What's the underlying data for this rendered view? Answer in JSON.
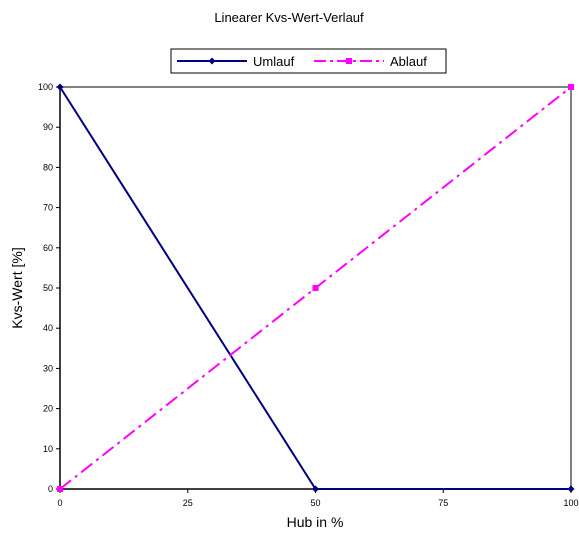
{
  "chart_data": {
    "type": "line",
    "title": "Linearer Kvs-Wert-Verlauf",
    "xlabel": "Hub in %",
    "ylabel": "Kvs-Wert [%]",
    "x": [
      0,
      50,
      100
    ],
    "xlim": [
      0,
      100
    ],
    "ylim": [
      0,
      100
    ],
    "xticks": [
      "0",
      "25",
      "50",
      "75",
      "100"
    ],
    "yticks": [
      "0",
      "10",
      "20",
      "30",
      "40",
      "50",
      "60",
      "70",
      "80",
      "90",
      "100"
    ],
    "grid": false,
    "legend_position": "top-center",
    "series": [
      {
        "name": "Umlauf",
        "values": [
          100,
          0,
          0
        ],
        "color": "#000080",
        "style": "solid",
        "marker": "diamond"
      },
      {
        "name": "Ablauf",
        "values": [
          0,
          50,
          100
        ],
        "color": "#FF00FF",
        "style": "dashdot",
        "marker": "square"
      }
    ]
  }
}
